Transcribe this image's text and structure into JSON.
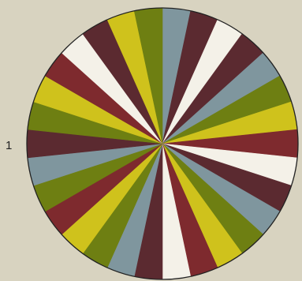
{
  "figure_label": "1",
  "palette": {
    "blue": "#7f969e",
    "maroon": "#5b2a30",
    "red": "#7e2a2e",
    "white": "#f4f1e8",
    "olive": "#6e7f12",
    "yellow": "#cfc21c",
    "outline": "#222222",
    "background": "#d8d3c0"
  },
  "wheel": {
    "segment_count": 30,
    "segments": [
      "blue",
      "maroon",
      "white",
      "maroon",
      "blue",
      "olive",
      "yellow",
      "red",
      "white",
      "maroon",
      "blue",
      "olive",
      "yellow",
      "red",
      "white",
      "maroon",
      "blue",
      "olive",
      "yellow",
      "red",
      "olive",
      "blue",
      "maroon",
      "olive",
      "yellow",
      "red",
      "white",
      "maroon",
      "yellow",
      "olive"
    ]
  }
}
